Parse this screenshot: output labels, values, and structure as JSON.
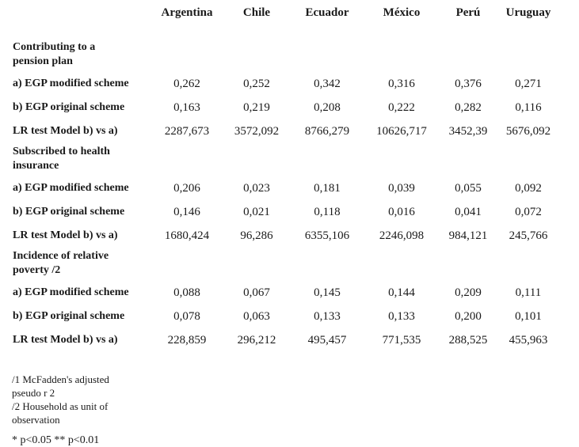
{
  "table": {
    "columns": [
      "Argentina",
      "Chile",
      "Ecuador",
      "México",
      "Perú",
      "Uruguay"
    ],
    "sections": [
      {
        "title": "Contributing to a pension plan",
        "rows": [
          {
            "label": "a) EGP modified scheme",
            "values": [
              "0,262",
              "0,252",
              "0,342",
              "0,316",
              "0,376",
              "0,271"
            ]
          },
          {
            "label": "b) EGP original scheme",
            "values": [
              "0,163",
              "0,219",
              "0,208",
              "0,222",
              "0,282",
              "0,116"
            ]
          },
          {
            "label": "LR test Model b) vs a)",
            "values": [
              "2287,673",
              "3572,092",
              "8766,279",
              "10626,717",
              "3452,39",
              "5676,092"
            ]
          }
        ]
      },
      {
        "title": "Subscribed to health insurance",
        "rows": [
          {
            "label": "a) EGP modified scheme",
            "values": [
              "0,206",
              "0,023",
              "0,181",
              "0,039",
              "0,055",
              "0,092"
            ]
          },
          {
            "label": "b) EGP original scheme",
            "values": [
              "0,146",
              "0,021",
              "0,118",
              "0,016",
              "0,041",
              "0,072"
            ]
          },
          {
            "label": "LR test Model b) vs a)",
            "values": [
              "1680,424",
              "96,286",
              "6355,106",
              "2246,098",
              "984,121",
              "245,766"
            ]
          }
        ]
      },
      {
        "title": "Incidence of relative poverty /2",
        "rows": [
          {
            "label": "a) EGP modified scheme",
            "values": [
              "0,088",
              "0,067",
              "0,145",
              "0,144",
              "0,209",
              "0,111"
            ]
          },
          {
            "label": "b) EGP original scheme",
            "values": [
              "0,078",
              "0,063",
              "0,133",
              "0,133",
              "0,200",
              "0,101"
            ]
          },
          {
            "label": "LR test Model b) vs a)",
            "values": [
              "228,859",
              "296,212",
              "495,457",
              "771,535",
              "288,525",
              "455,963"
            ]
          }
        ]
      }
    ],
    "footnotes": {
      "note1": "/1 McFadden's adjusted pseudo r 2",
      "note2": "/2 Household as unit of observation",
      "significance": "* p<0.05 ** p<0.01"
    }
  }
}
